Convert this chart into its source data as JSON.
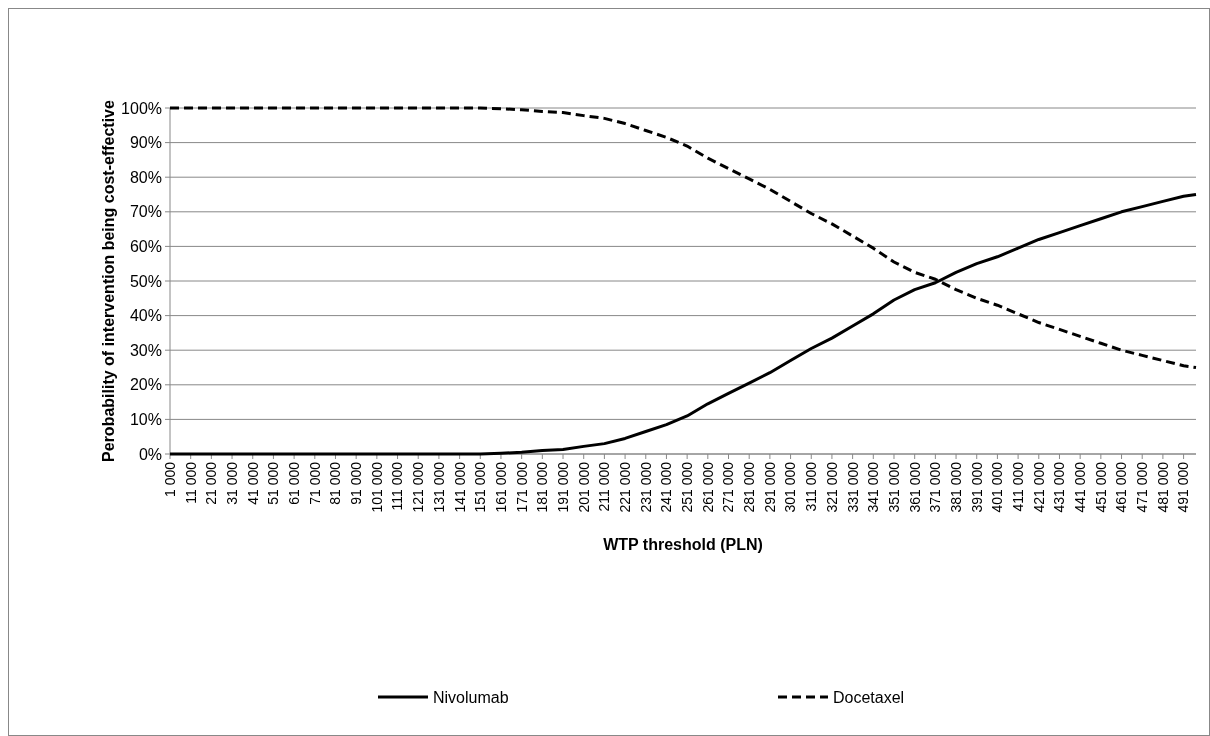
{
  "chart_data": {
    "type": "line",
    "xlabel": "WTP threshold (PLN)",
    "ylabel": "Perobability of intervention being cost-effective",
    "x": [
      1000,
      21000,
      41000,
      61000,
      81000,
      101000,
      121000,
      141000,
      151000,
      161000,
      171000,
      181000,
      191000,
      201000,
      211000,
      221000,
      231000,
      241000,
      251000,
      261000,
      271000,
      281000,
      291000,
      301000,
      311000,
      321000,
      331000,
      341000,
      351000,
      361000,
      371000,
      381000,
      391000,
      401000,
      411000,
      421000,
      431000,
      441000,
      451000,
      461000,
      471000,
      481000,
      491000,
      497000
    ],
    "series": [
      {
        "name": "Nivolumab",
        "color": "#000000",
        "line_style": "solid",
        "values": [
          0,
          0,
          0,
          0,
          0,
          0,
          0,
          0,
          0,
          0.2,
          0.5,
          1,
          1.3,
          2.2,
          3,
          4.5,
          6.5,
          8.5,
          11,
          14.5,
          17.5,
          20.5,
          23.5,
          27,
          30.5,
          33.5,
          37,
          40.5,
          44.5,
          47.5,
          49.5,
          52.5,
          55,
          57,
          59.5,
          62,
          64,
          66,
          68,
          70,
          71.5,
          73,
          74.5,
          75
        ]
      },
      {
        "name": "Docetaxel",
        "color": "#000000",
        "line_style": "dashed",
        "values": [
          100,
          100,
          100,
          100,
          100,
          100,
          100,
          100,
          100,
          99.8,
          99.5,
          99,
          98.7,
          97.8,
          97,
          95.5,
          93.5,
          91.5,
          89,
          85.5,
          82.5,
          79.5,
          76.5,
          73,
          69.5,
          66.5,
          63,
          59.5,
          55.5,
          52.5,
          50.5,
          47.5,
          45,
          43,
          40.5,
          38,
          36,
          34,
          32,
          30,
          28.5,
          27,
          25.5,
          25
        ]
      }
    ],
    "xlim": [
      1000,
      497000
    ],
    "xticks": [
      {
        "value": 1000,
        "label": "1 000"
      },
      {
        "value": 11000,
        "label": "11 000"
      },
      {
        "value": 21000,
        "label": "21 000"
      },
      {
        "value": 31000,
        "label": "31 000"
      },
      {
        "value": 41000,
        "label": "41 000"
      },
      {
        "value": 51000,
        "label": "51 000"
      },
      {
        "value": 61000,
        "label": "61 000"
      },
      {
        "value": 71000,
        "label": "71 000"
      },
      {
        "value": 81000,
        "label": "81 000"
      },
      {
        "value": 91000,
        "label": "91 000"
      },
      {
        "value": 101000,
        "label": "101 000"
      },
      {
        "value": 111000,
        "label": "111 000"
      },
      {
        "value": 121000,
        "label": "121 000"
      },
      {
        "value": 131000,
        "label": "131 000"
      },
      {
        "value": 141000,
        "label": "141 000"
      },
      {
        "value": 151000,
        "label": "151 000"
      },
      {
        "value": 161000,
        "label": "161 000"
      },
      {
        "value": 171000,
        "label": "171 000"
      },
      {
        "value": 181000,
        "label": "181 000"
      },
      {
        "value": 191000,
        "label": "191 000"
      },
      {
        "value": 201000,
        "label": "201 000"
      },
      {
        "value": 211000,
        "label": "211 000"
      },
      {
        "value": 221000,
        "label": "221 000"
      },
      {
        "value": 231000,
        "label": "231 000"
      },
      {
        "value": 241000,
        "label": "241 000"
      },
      {
        "value": 251000,
        "label": "251 000"
      },
      {
        "value": 261000,
        "label": "261 000"
      },
      {
        "value": 271000,
        "label": "271 000"
      },
      {
        "value": 281000,
        "label": "281 000"
      },
      {
        "value": 291000,
        "label": "291 000"
      },
      {
        "value": 301000,
        "label": "301 000"
      },
      {
        "value": 311000,
        "label": "311 000"
      },
      {
        "value": 321000,
        "label": "321 000"
      },
      {
        "value": 331000,
        "label": "331 000"
      },
      {
        "value": 341000,
        "label": "341 000"
      },
      {
        "value": 351000,
        "label": "351 000"
      },
      {
        "value": 361000,
        "label": "361 000"
      },
      {
        "value": 371000,
        "label": "371 000"
      },
      {
        "value": 381000,
        "label": "381 000"
      },
      {
        "value": 391000,
        "label": "391 000"
      },
      {
        "value": 401000,
        "label": "401 000"
      },
      {
        "value": 411000,
        "label": "411 000"
      },
      {
        "value": 421000,
        "label": "421 000"
      },
      {
        "value": 431000,
        "label": "431 000"
      },
      {
        "value": 441000,
        "label": "441 000"
      },
      {
        "value": 451000,
        "label": "451 000"
      },
      {
        "value": 461000,
        "label": "461 000"
      },
      {
        "value": 471000,
        "label": "471 000"
      },
      {
        "value": 481000,
        "label": "481 000"
      },
      {
        "value": 491000,
        "label": "491 000"
      }
    ],
    "ylim": [
      0,
      100
    ],
    "yticks": [
      {
        "value": 0,
        "label": "0%"
      },
      {
        "value": 10,
        "label": "10%"
      },
      {
        "value": 20,
        "label": "20%"
      },
      {
        "value": 30,
        "label": "30%"
      },
      {
        "value": 40,
        "label": "40%"
      },
      {
        "value": 50,
        "label": "50%"
      },
      {
        "value": 60,
        "label": "60%"
      },
      {
        "value": 70,
        "label": "70%"
      },
      {
        "value": 80,
        "label": "80%"
      },
      {
        "value": 90,
        "label": "90%"
      },
      {
        "value": 100,
        "label": "100%"
      }
    ],
    "grid": "y",
    "legend": "bottom"
  }
}
